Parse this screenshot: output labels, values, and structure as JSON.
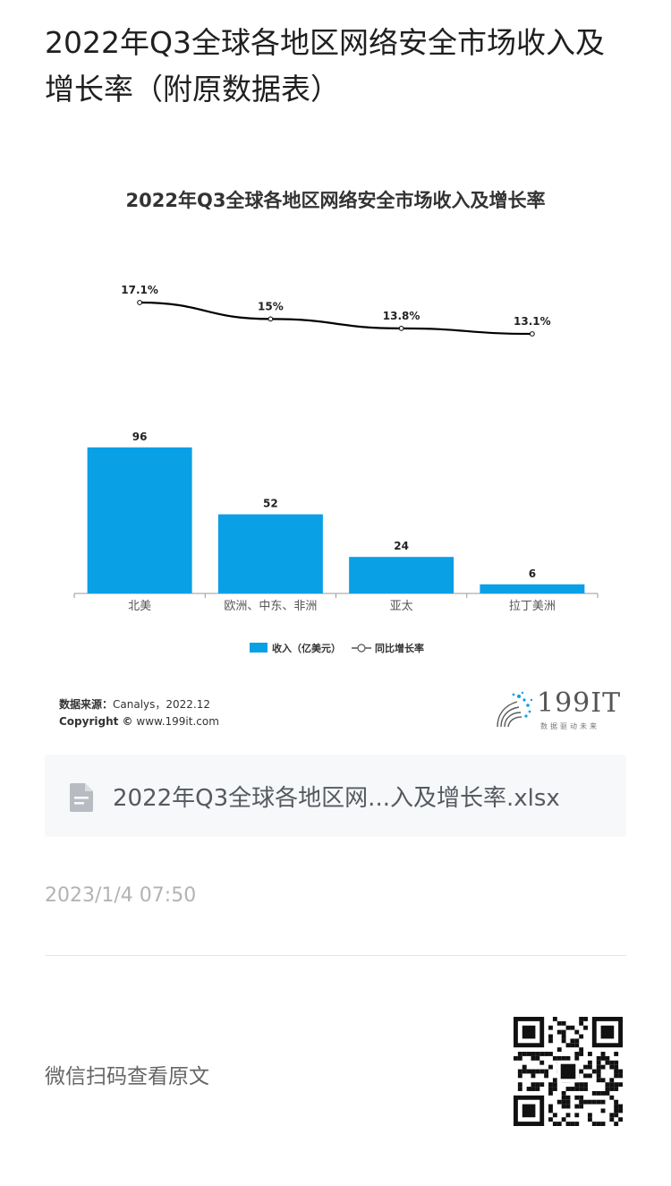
{
  "page": {
    "title": "2022年Q3全球各地区网络安全市场收入及增长率（附原数据表）"
  },
  "chart_data": {
    "type": "bar",
    "title": "2022年Q3全球各地区网络安全市场收入及增长率",
    "categories": [
      "北美",
      "欧洲、中东、非洲",
      "亚太",
      "拉丁美洲"
    ],
    "series": [
      {
        "name": "收入（亿美元）",
        "type": "bar",
        "values": [
          96,
          52,
          24,
          6
        ],
        "labels": [
          "96",
          "52",
          "24",
          "6"
        ],
        "color": "#0aa0e6"
      },
      {
        "name": "同比增长率",
        "type": "line",
        "values": [
          17.1,
          15,
          13.8,
          13.1
        ],
        "labels": [
          "17.1%",
          "15%",
          "13.8%",
          "13.1%"
        ],
        "color": "#000000"
      }
    ],
    "legend_position": "bottom",
    "grid": false
  },
  "source": {
    "label": "数据来源：",
    "text": "Canalys，2022.12",
    "copyright_label": "Copyright ©",
    "copyright_text": "www.199it.com"
  },
  "logo": {
    "text": "199IT",
    "subtitle": "数据驱动未来"
  },
  "attachment": {
    "file_name": "2022年Q3全球各地区网...入及增长率.xlsx",
    "icon": "document-icon"
  },
  "timestamp": "2023/1/4 07:50",
  "qr": {
    "text": "微信扫码查看原文"
  }
}
